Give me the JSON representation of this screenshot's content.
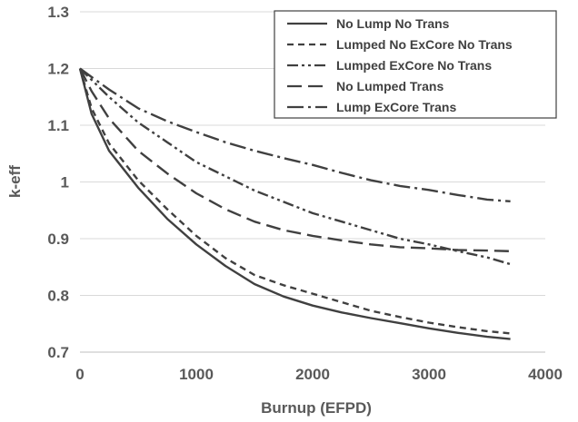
{
  "chart_data": {
    "type": "line",
    "title": "",
    "xlabel": "Burnup (EFPD)",
    "ylabel": "k-eff",
    "xlim": [
      0,
      4000
    ],
    "ylim": [
      0.7,
      1.3
    ],
    "x_ticks": [
      "0",
      "1000",
      "2000",
      "3000",
      "4000"
    ],
    "y_ticks": [
      "0.7",
      "0.8",
      "0.9",
      "1",
      "1.1",
      "1.2",
      "1.3"
    ],
    "grid": "horizontal",
    "legend_position": "top-right",
    "series": [
      {
        "name": "No Lump No Trans",
        "line_style": "solid",
        "x": [
          0,
          100,
          250,
          500,
          750,
          1000,
          1250,
          1500,
          1750,
          2000,
          2250,
          2500,
          2750,
          3000,
          3250,
          3500,
          3700
        ],
        "y": [
          1.2,
          1.12,
          1.055,
          0.99,
          0.935,
          0.89,
          0.852,
          0.82,
          0.798,
          0.782,
          0.77,
          0.76,
          0.751,
          0.742,
          0.734,
          0.727,
          0.723
        ]
      },
      {
        "name": "Lumped No ExCore No Trans",
        "line_style": "dashed",
        "x": [
          0,
          100,
          250,
          500,
          750,
          1000,
          1250,
          1500,
          1750,
          2000,
          2250,
          2500,
          2750,
          3000,
          3250,
          3500,
          3700
        ],
        "y": [
          1.2,
          1.13,
          1.068,
          1.003,
          0.952,
          0.905,
          0.866,
          0.836,
          0.818,
          0.803,
          0.788,
          0.773,
          0.762,
          0.752,
          0.744,
          0.737,
          0.733
        ]
      },
      {
        "name": "Lumped ExCore No Trans",
        "line_style": "dash-dot-dot",
        "x": [
          0,
          100,
          250,
          500,
          750,
          1000,
          1250,
          1500,
          1750,
          2000,
          2250,
          2500,
          2750,
          3000,
          3250,
          3500,
          3700
        ],
        "y": [
          1.2,
          1.18,
          1.15,
          1.105,
          1.07,
          1.035,
          1.01,
          0.985,
          0.965,
          0.945,
          0.93,
          0.915,
          0.9,
          0.89,
          0.878,
          0.867,
          0.855
        ]
      },
      {
        "name": "No Lumped Trans",
        "line_style": "long-dash",
        "x": [
          0,
          100,
          250,
          500,
          750,
          1000,
          1250,
          1500,
          1750,
          2000,
          2250,
          2500,
          2750,
          3000,
          3250,
          3500,
          3700
        ],
        "y": [
          1.2,
          1.16,
          1.112,
          1.055,
          1.015,
          0.98,
          0.952,
          0.93,
          0.915,
          0.905,
          0.897,
          0.89,
          0.885,
          0.883,
          0.88,
          0.879,
          0.878
        ]
      },
      {
        "name": "Lump ExCore Trans",
        "line_style": "long-dash-dot",
        "x": [
          0,
          100,
          250,
          500,
          750,
          1000,
          1250,
          1500,
          1750,
          2000,
          2250,
          2500,
          2750,
          3000,
          3250,
          3500,
          3700
        ],
        "y": [
          1.2,
          1.185,
          1.163,
          1.13,
          1.107,
          1.088,
          1.07,
          1.055,
          1.042,
          1.03,
          1.016,
          1.003,
          0.993,
          0.986,
          0.977,
          0.969,
          0.966
        ]
      }
    ]
  }
}
